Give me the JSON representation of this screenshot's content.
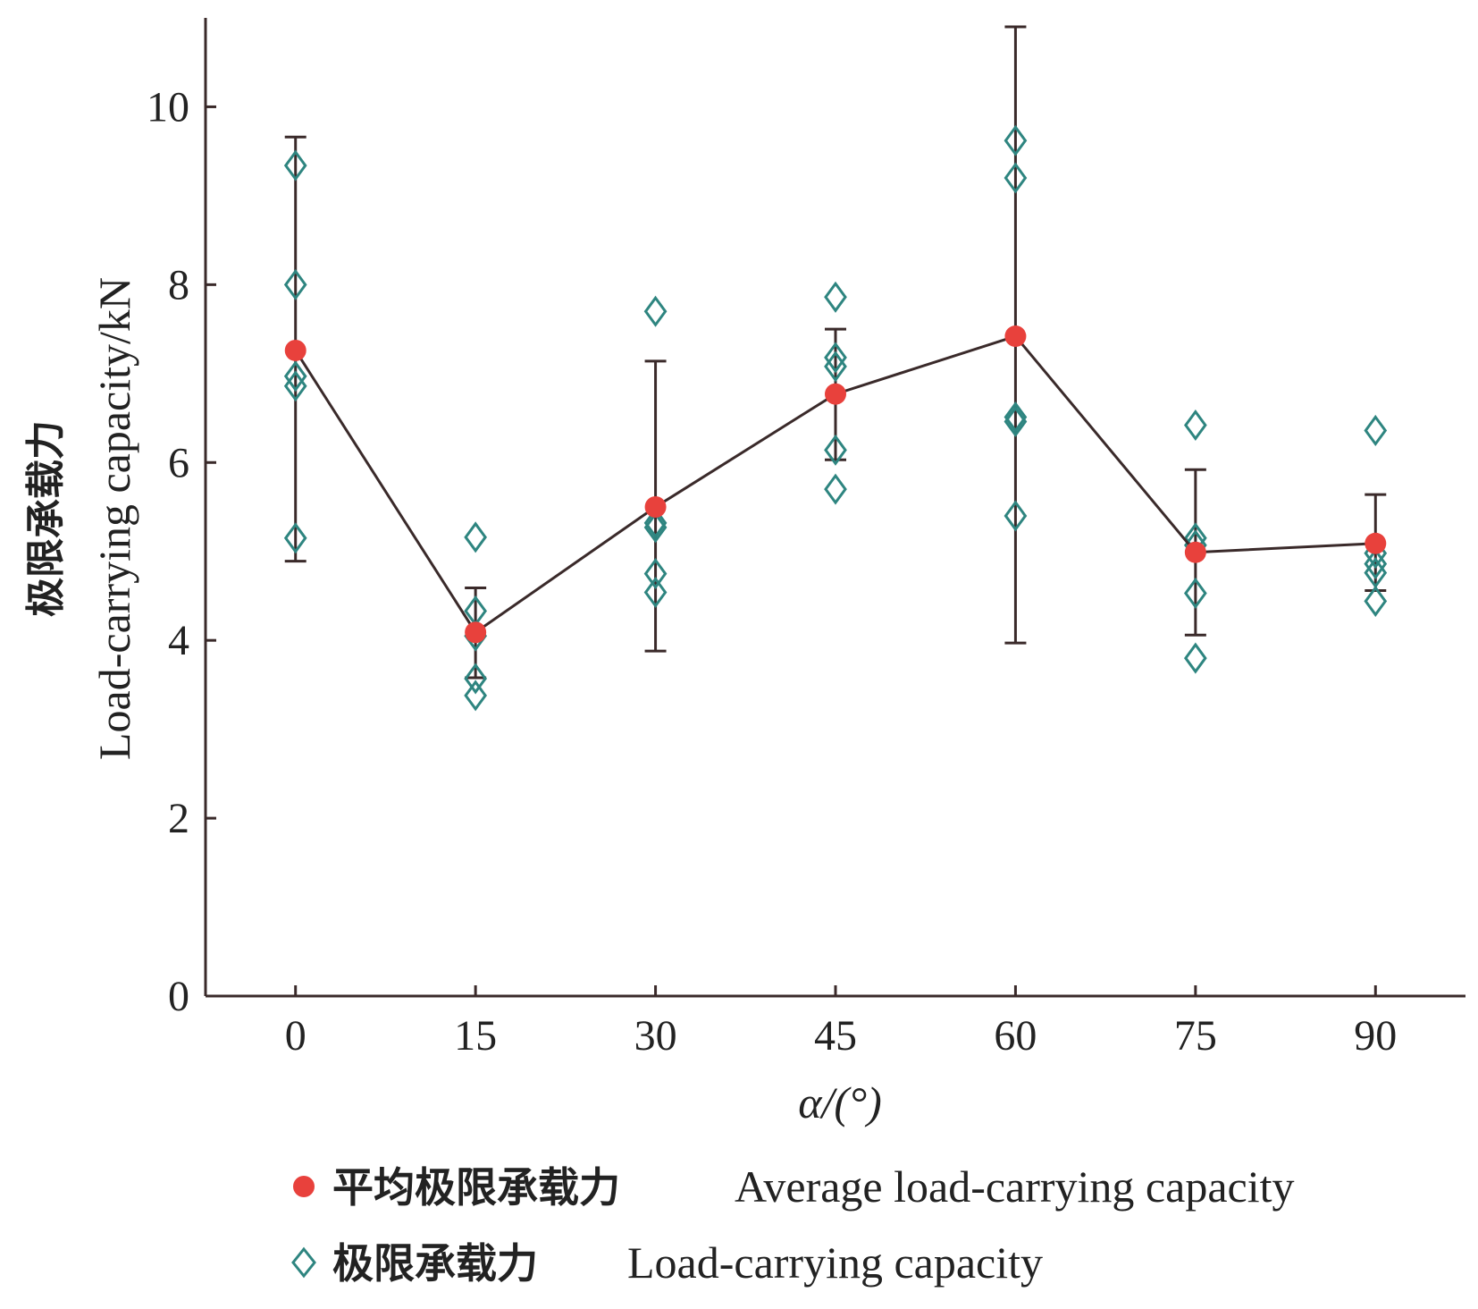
{
  "chart_data": {
    "type": "scatter",
    "x_values": [
      0,
      15,
      30,
      45,
      60,
      75,
      90
    ],
    "xlim": [
      -7.5,
      97.5
    ],
    "ylim": [
      0,
      11
    ],
    "x_ticks": [
      "0",
      "15",
      "30",
      "45",
      "60",
      "75",
      "90"
    ],
    "y_ticks": [
      "0",
      "2",
      "4",
      "6",
      "8",
      "10"
    ],
    "xlabel": "α/(°)",
    "ylabel_cn": "极限承载力",
    "ylabel_en": "Load-carrying capacity/kN",
    "grid": false,
    "legend_position": "bottom",
    "series": [
      {
        "name_cn": "平均极限承载力",
        "name_en": "Average load-carrying capacity",
        "marker": "filled-circle",
        "color": "#e8413c",
        "line_color": "#3a2a2a",
        "means": [
          7.26,
          4.09,
          5.5,
          6.77,
          7.42,
          4.99,
          5.09
        ],
        "error_upper": [
          9.66,
          4.59,
          7.14,
          7.5,
          10.9,
          5.92,
          5.64
        ],
        "error_lower": [
          4.89,
          3.58,
          3.88,
          6.03,
          3.97,
          4.06,
          4.56
        ]
      },
      {
        "name_cn": "极限承载力",
        "name_en": "Load-carrying capacity",
        "marker": "open-diamond",
        "color": "#2e8580",
        "points": [
          [
            0,
            9.34
          ],
          [
            0,
            8.0
          ],
          [
            0,
            6.97
          ],
          [
            0,
            6.86
          ],
          [
            0,
            5.15
          ],
          [
            15,
            5.16
          ],
          [
            15,
            4.33
          ],
          [
            15,
            4.05
          ],
          [
            15,
            3.57
          ],
          [
            15,
            3.38
          ],
          [
            30,
            7.7
          ],
          [
            30,
            5.32
          ],
          [
            30,
            5.27
          ],
          [
            30,
            4.75
          ],
          [
            30,
            4.54
          ],
          [
            45,
            7.86
          ],
          [
            45,
            7.18
          ],
          [
            45,
            7.08
          ],
          [
            45,
            6.14
          ],
          [
            45,
            5.7
          ],
          [
            60,
            9.62
          ],
          [
            60,
            9.2
          ],
          [
            60,
            6.51
          ],
          [
            60,
            6.46
          ],
          [
            60,
            5.4
          ],
          [
            75,
            6.42
          ],
          [
            75,
            5.15
          ],
          [
            75,
            5.07
          ],
          [
            75,
            4.53
          ],
          [
            75,
            3.8
          ],
          [
            90,
            6.36
          ],
          [
            90,
            4.98
          ],
          [
            90,
            4.86
          ],
          [
            90,
            4.76
          ],
          [
            90,
            4.44
          ]
        ]
      }
    ]
  }
}
